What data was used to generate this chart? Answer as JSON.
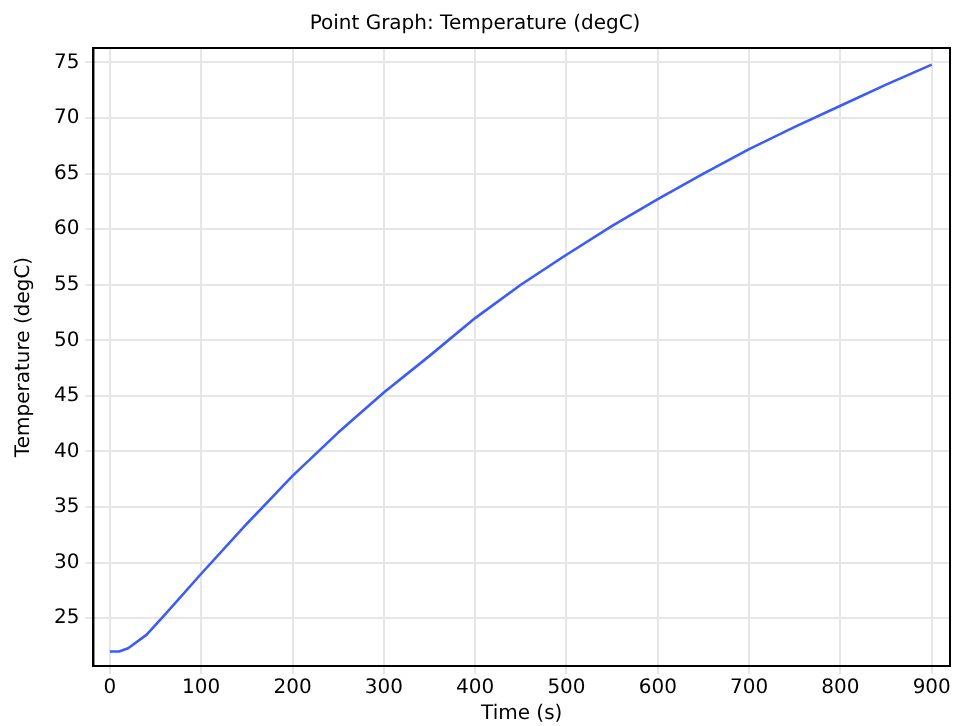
{
  "chart_data": {
    "type": "line",
    "title": "Point Graph: Temperature (degC)",
    "xlabel": "Time (s)",
    "ylabel": "Temperature (degC)",
    "xlim": [
      -18,
      920
    ],
    "ylim": [
      20.7,
      76.3
    ],
    "xticks": [
      0,
      100,
      200,
      300,
      400,
      500,
      600,
      700,
      800,
      900
    ],
    "yticks": [
      25,
      30,
      35,
      40,
      45,
      50,
      55,
      60,
      65,
      70,
      75
    ],
    "grid": true,
    "legend": false,
    "marker": "none",
    "line_style": "solid",
    "series": [
      {
        "color": "#3b5bff",
        "x": [
          0,
          10,
          20,
          40,
          60,
          100,
          150,
          200,
          250,
          300,
          350,
          400,
          450,
          500,
          550,
          600,
          650,
          700,
          750,
          800,
          850,
          900
        ],
        "values": [
          22,
          22,
          22.3,
          23.5,
          25.3,
          29,
          33.5,
          37.8,
          41.7,
          45.3,
          48.6,
          52,
          55,
          57.7,
          60.3,
          62.7,
          65,
          67.2,
          69.2,
          71.1,
          73,
          74.8
        ]
      }
    ]
  }
}
